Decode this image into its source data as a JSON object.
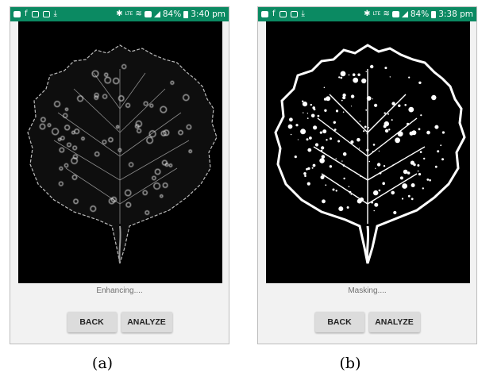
{
  "panels": [
    {
      "statusbar": {
        "battery": "84%",
        "time": "3:40 pm"
      },
      "status_message": "Enhancing....",
      "buttons": {
        "back": "BACK",
        "analyze": "ANALYZE"
      },
      "figure_label": "(a)",
      "image_style": "edge-enhanced grayscale leaf"
    },
    {
      "statusbar": {
        "battery": "84%",
        "time": "3:38 pm"
      },
      "status_message": "Masking....",
      "buttons": {
        "back": "BACK",
        "analyze": "ANALYZE"
      },
      "figure_label": "(b)",
      "image_style": "binary mask leaf"
    }
  ],
  "colors": {
    "statusbar": "#0b8a62",
    "phone_background": "#f2f2f2",
    "button": "#dcdcdc"
  },
  "icons": {
    "status_left": [
      "message-icon",
      "facebook-icon",
      "gallery-icon",
      "clipboard-icon",
      "download-icon"
    ],
    "status_right": [
      "bluetooth-icon",
      "volte-icon",
      "wifi-icon",
      "sim-icon",
      "signal-icon",
      "battery-icon"
    ]
  }
}
